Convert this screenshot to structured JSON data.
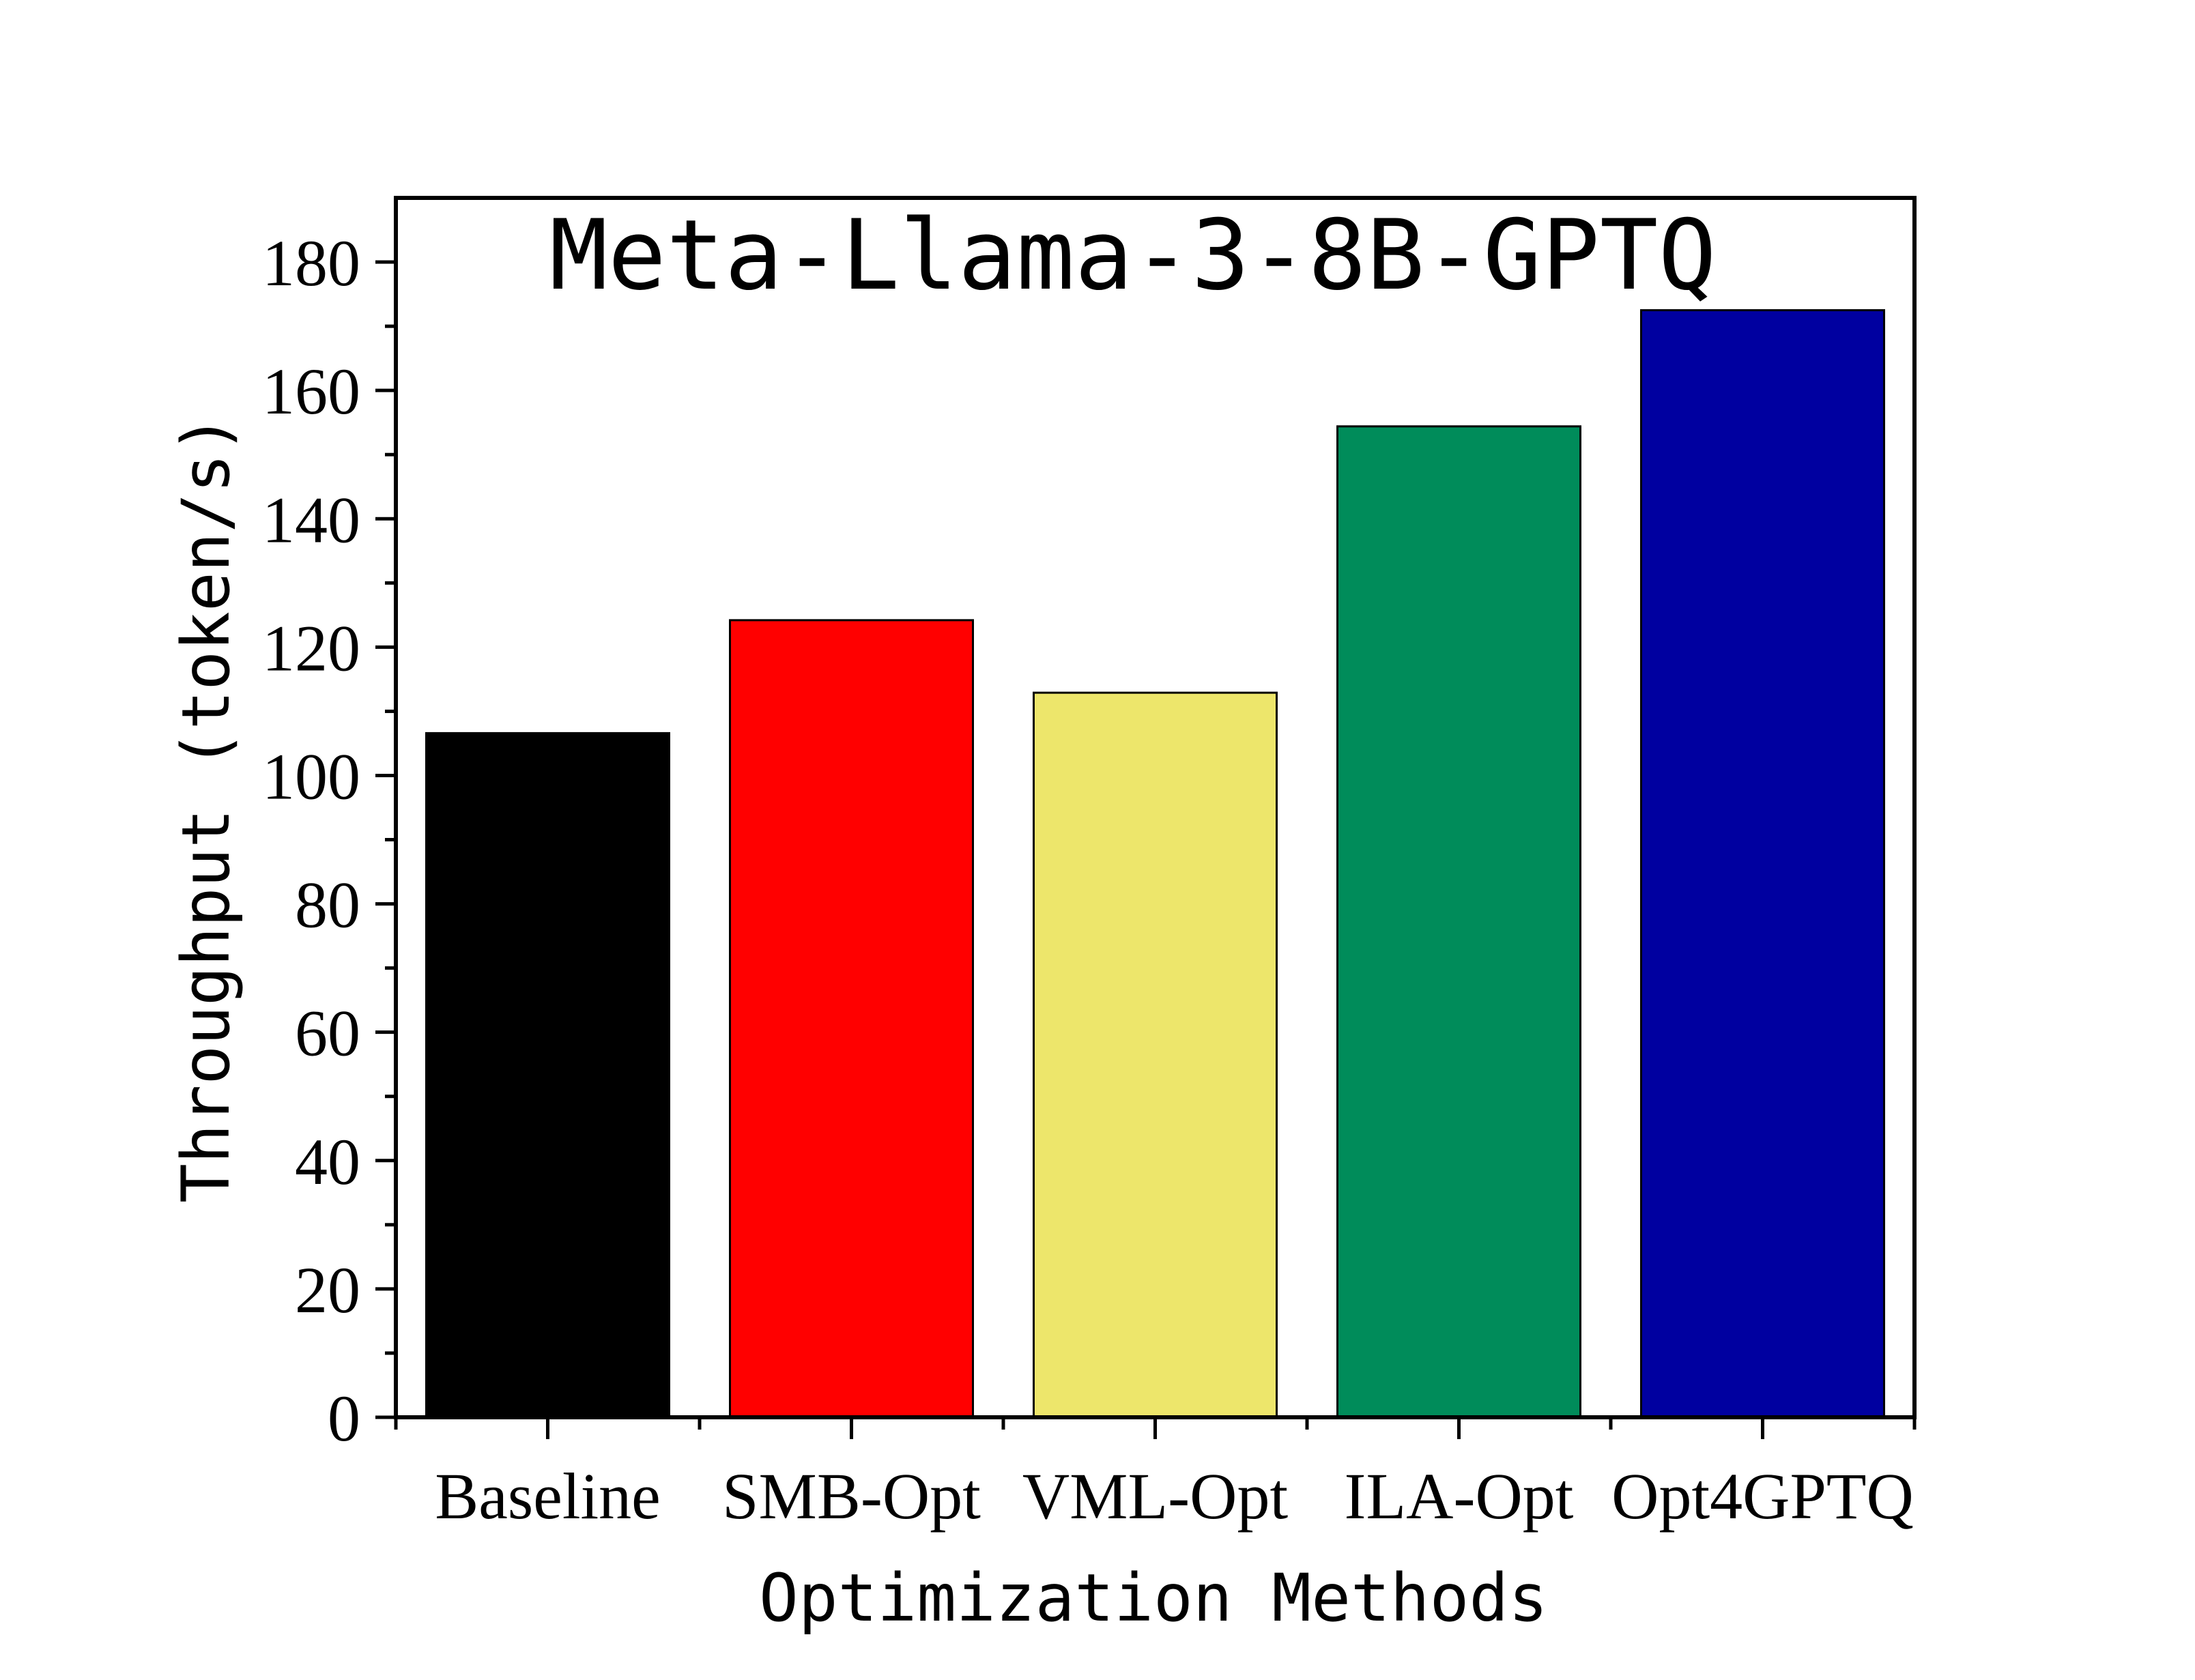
{
  "chart_data": {
    "type": "bar",
    "title": "Meta-Llama-3-8B-GPTQ",
    "xlabel": "Optimization Methods",
    "ylabel": "Throughput (token/s)",
    "categories": [
      "Baseline",
      "SMB-Opt",
      "VML-Opt",
      "ILA-Opt",
      "Opt4GPTQ"
    ],
    "values": [
      106.6,
      124.2,
      112.9,
      154.4,
      172.5
    ],
    "colors": [
      "#000000",
      "#ff0000",
      "#ede66b",
      "#008c5a",
      "#0000a0"
    ],
    "ylim": [
      0,
      190
    ],
    "yticks": [
      0,
      20,
      40,
      60,
      80,
      100,
      120,
      140,
      160,
      180
    ],
    "ytick_labels": [
      "0",
      "20",
      "40",
      "60",
      "80",
      "100",
      "120",
      "140",
      "160",
      "180"
    ],
    "grid": false,
    "legend": "none"
  }
}
